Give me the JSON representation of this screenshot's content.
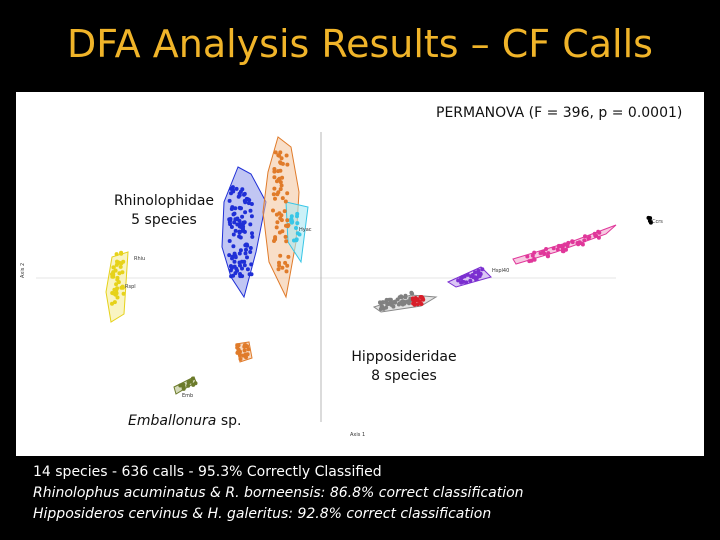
{
  "slide": {
    "title": "DFA Analysis Results – CF Calls"
  },
  "plot": {
    "permanova": "PERMANOVA (F = 396, p = 0.0001)",
    "annotations": {
      "rhinolophidae_name": "Rhinolophidae",
      "rhinolophidae_count": "5 species",
      "hipposideridae_name": "Hipposideridae",
      "hipposideridae_count": "8 species",
      "emballonura_genus": "Emballonura",
      "emballonura_suffix": " sp."
    }
  },
  "footer": {
    "line1": "14 species - 636 calls - 95.3% Correctly Classified",
    "line2": "Rhinolophus acuminatus & R. borneensis: 86.8% correct classification",
    "line3": "Hipposideros cervinus & H. galeritus: 92.8% correct classification"
  },
  "colors": {
    "title": "#f0b429",
    "blue": "#1f2fd6",
    "orange": "#e07b2a",
    "cyan": "#37c6e6",
    "yellow": "#e6d21a",
    "olive": "#6b7a2a",
    "gray": "#808080",
    "red": "#d81f2a",
    "purple": "#7b2fd0",
    "magenta": "#e0379a"
  }
}
